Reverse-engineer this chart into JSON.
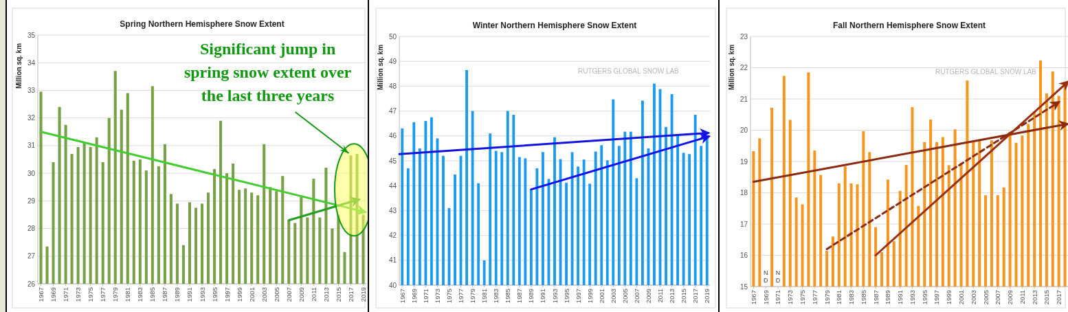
{
  "chart_data": [
    {
      "type": "bar",
      "title": "Spring Northern Hemisphere Snow Extent",
      "ylabel": "Million sq. km",
      "grid": "y",
      "x": [
        1967,
        1968,
        1969,
        1970,
        1971,
        1972,
        1973,
        1974,
        1975,
        1976,
        1977,
        1978,
        1979,
        1980,
        1981,
        1982,
        1983,
        1984,
        1985,
        1986,
        1987,
        1988,
        1989,
        1990,
        1991,
        1992,
        1993,
        1994,
        1995,
        1996,
        1997,
        1998,
        1999,
        2000,
        2001,
        2002,
        2003,
        2004,
        2005,
        2006,
        2007,
        2008,
        2009,
        2010,
        2011,
        2012,
        2013,
        2014,
        2015,
        2016,
        2017,
        2018,
        2019
      ],
      "xlim": [
        1966.5,
        2019.5
      ],
      "xticks": [
        1967,
        1969,
        1971,
        1973,
        1975,
        1977,
        1979,
        1981,
        1983,
        1985,
        1987,
        1989,
        1991,
        1993,
        1995,
        1997,
        1999,
        2001,
        2003,
        2005,
        2007,
        2009,
        2011,
        2013,
        2015,
        2017,
        2019
      ],
      "ylim": [
        26,
        35
      ],
      "yticks": [
        26,
        27,
        28,
        29,
        30,
        31,
        32,
        33,
        34,
        35
      ],
      "series": [
        {
          "color": "#78a046",
          "values": [
            32.95,
            27.35,
            30.4,
            32.4,
            31.75,
            30.7,
            30.95,
            31.1,
            30.95,
            31.3,
            30.4,
            32.0,
            33.7,
            32.3,
            32.9,
            30.45,
            30.5,
            30.1,
            33.15,
            30.25,
            31.05,
            29.25,
            28.9,
            27.4,
            28.95,
            28.75,
            28.9,
            29.3,
            30.15,
            31.9,
            30.0,
            30.35,
            29.4,
            29.45,
            29.3,
            29.2,
            31.05,
            29.5,
            29.35,
            29.9,
            28.3,
            28.2,
            29.15,
            28.4,
            29.8,
            28.4,
            30.2,
            28.0,
            28.5,
            27.15,
            30.65,
            30.7,
            28.5
          ]
        },
        {
          "type": "line",
          "color": "#44cc33",
          "x": [
            1967,
            2019.3
          ],
          "values": [
            31.5,
            28.6
          ]
        },
        {
          "type": "line",
          "color": "#22a022",
          "x": [
            2007,
            2018.3
          ],
          "values": [
            28.3,
            29.05
          ]
        }
      ],
      "annotations": [
        {
          "text": "Significant jump in spring snow extent over the last three years",
          "x": 2017,
          "y": 30.65
        }
      ]
    },
    {
      "type": "bar",
      "title": "Winter Northern Hemisphere Snow Extent",
      "ylabel": "Million sq. km",
      "grid": "y",
      "x": [
        1967,
        1968,
        1969,
        1970,
        1971,
        1972,
        1973,
        1974,
        1975,
        1976,
        1977,
        1978,
        1979,
        1980,
        1981,
        1982,
        1983,
        1984,
        1985,
        1986,
        1987,
        1988,
        1989,
        1990,
        1991,
        1992,
        1993,
        1994,
        1995,
        1996,
        1997,
        1998,
        1999,
        2000,
        2001,
        2002,
        2003,
        2004,
        2005,
        2006,
        2007,
        2008,
        2009,
        2010,
        2011,
        2012,
        2013,
        2014,
        2015,
        2016,
        2017,
        2018,
        2019
      ],
      "xlim": [
        1966.5,
        2019.5
      ],
      "xticks": [
        1967,
        1969,
        1971,
        1973,
        1975,
        1977,
        1979,
        1981,
        1983,
        1985,
        1987,
        1989,
        1991,
        1993,
        1995,
        1997,
        1999,
        2001,
        2003,
        2005,
        2007,
        2009,
        2011,
        2013,
        2015,
        2017,
        2019
      ],
      "ylim": [
        40,
        50
      ],
      "yticks": [
        40,
        41,
        42,
        43,
        44,
        45,
        46,
        47,
        48,
        49,
        50
      ],
      "series": [
        {
          "color": "#1a9af0",
          "values": [
            46.3,
            44.7,
            46.55,
            45.5,
            46.6,
            46.75,
            45.9,
            45.2,
            43.1,
            44.45,
            45.2,
            48.65,
            47.0,
            44.1,
            41.0,
            46.1,
            45.4,
            45.35,
            47.0,
            46.85,
            45.15,
            45.1,
            43.85,
            44.7,
            45.35,
            44.27,
            45.95,
            45.07,
            44.12,
            45.35,
            44.77,
            45.05,
            44.08,
            45.37,
            45.63,
            45.02,
            47.47,
            45.6,
            46.17,
            46.17,
            44.3,
            47.42,
            45.5,
            48.1,
            47.88,
            46.36,
            47.68,
            46.04,
            45.32,
            45.27,
            46.85,
            45.6,
            45.93
          ]
        },
        {
          "type": "line",
          "color": "#1414e0",
          "x": [
            1966.5,
            2019.2
          ],
          "values": [
            45.27,
            46.12
          ]
        },
        {
          "type": "line",
          "color": "#1010f0",
          "x": [
            1989,
            2019.3
          ],
          "values": [
            43.85,
            45.98
          ]
        }
      ],
      "annotations": [
        "RUTGERS GLOBAL SNOW LAB"
      ]
    },
    {
      "type": "bar",
      "title": "Fall Northern Hemisphere Snow Extent",
      "ylabel": "Million sq. km",
      "grid": "y",
      "x": [
        1967,
        1968,
        1969,
        1970,
        1971,
        1972,
        1973,
        1974,
        1975,
        1976,
        1977,
        1978,
        1979,
        1980,
        1981,
        1982,
        1983,
        1984,
        1985,
        1986,
        1987,
        1988,
        1989,
        1990,
        1991,
        1992,
        1993,
        1994,
        1995,
        1996,
        1997,
        1998,
        1999,
        2000,
        2001,
        2002,
        2003,
        2004,
        2005,
        2006,
        2007,
        2008,
        2009,
        2010,
        2011,
        2012,
        2013,
        2014,
        2015,
        2016,
        2017,
        2018
      ],
      "xlim": [
        1966.5,
        2018.5
      ],
      "xticks": [
        1967,
        1969,
        1971,
        1973,
        1975,
        1977,
        1979,
        1981,
        1983,
        1985,
        1987,
        1989,
        1991,
        1993,
        1995,
        1997,
        1999,
        2001,
        2003,
        2005,
        2007,
        2009,
        2011,
        2013,
        2015,
        2017
      ],
      "ylim": [
        15,
        23
      ],
      "yticks": [
        15,
        16,
        17,
        18,
        19,
        20,
        21,
        22,
        23
      ],
      "series": [
        {
          "color": "#f7961e",
          "values": [
            19.33,
            19.74,
            null,
            20.72,
            null,
            21.74,
            20.33,
            17.85,
            17.63,
            21.85,
            19.35,
            18.57,
            16.14,
            16.6,
            18.3,
            18.85,
            18.3,
            18.27,
            19.97,
            19.3,
            16.9,
            16.1,
            18.42,
            16.45,
            18.06,
            18.89,
            20.74,
            17.58,
            19.62,
            20.34,
            19.62,
            19.78,
            18.88,
            20.03,
            18.95,
            21.59,
            19.66,
            19.67,
            17.92,
            19.68,
            17.92,
            18.17,
            19.95,
            19.6,
            19.83,
            20.2,
            20.6,
            22.23,
            21.18,
            21.88,
            21.1,
            21.41
          ]
        },
        {
          "type": "line",
          "color": "#8b2a0e",
          "x": [
            1967,
            2018.4
          ],
          "values": [
            18.35,
            20.2
          ]
        },
        {
          "type": "line",
          "color": "#8b2a0e",
          "line_style": "dashed",
          "x": [
            1979,
            2017
          ],
          "values": [
            16.2,
            20.9
          ]
        },
        {
          "type": "line",
          "color": "#9a2e10",
          "x": [
            1987,
            2018.5
          ],
          "values": [
            16.0,
            21.55
          ]
        }
      ],
      "annotations": [
        "RUTGERS GLOBAL SNOW LAB",
        "ND",
        "ND"
      ]
    }
  ]
}
